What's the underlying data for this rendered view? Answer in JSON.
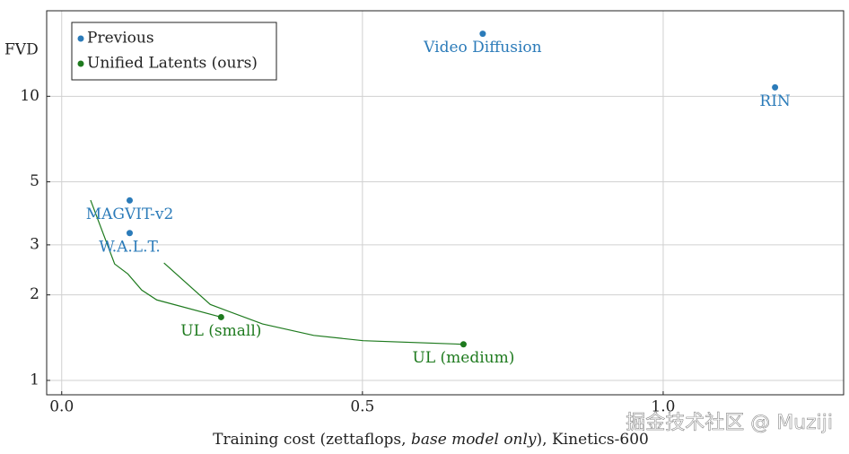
{
  "chart_data": {
    "type": "scatter",
    "ylabel": "FVD",
    "xlabel": [
      "Training cost (zettaflops, ",
      "base model only",
      "), Kinetics-600"
    ],
    "xlim": [
      -0.025,
      1.3
    ],
    "ylim": [
      0.89,
      20
    ],
    "log_y": true,
    "grid": true,
    "legend": "top-left",
    "xticks": [
      {
        "value": 0,
        "label": "0.0"
      },
      0.5,
      {
        "value": 1,
        "label": "1.0"
      }
    ],
    "yticks": [
      1,
      2,
      3,
      5,
      10
    ],
    "series": [
      {
        "name": "Previous",
        "color": "#2b7bb9",
        "x": [
          0.7,
          1.186,
          0.113,
          0.113
        ],
        "values": [
          16.6,
          10.75,
          4.3,
          3.3
        ],
        "point_labels": [
          "Video Diffusion",
          "RIN",
          "MAGVIT-v2",
          "W.A.L.T."
        ]
      },
      {
        "name": "Unified Latents (ours)",
        "color": "#1e7a1e",
        "x": [
          0.265,
          0.668
        ],
        "values": [
          1.67,
          1.34
        ],
        "point_labels": [
          "UL (small)",
          "UL (medium)"
        ]
      }
    ],
    "curves": [
      {
        "color": "#1e7a1e",
        "x": [
          0.048,
          0.088,
          0.11,
          0.133,
          0.158,
          0.265
        ],
        "values": [
          4.31,
          2.57,
          2.37,
          2.08,
          1.92,
          1.67
        ]
      },
      {
        "color": "#1e7a1e",
        "x": [
          0.17,
          0.247,
          0.334,
          0.419,
          0.501,
          0.668
        ],
        "values": [
          2.59,
          1.85,
          1.58,
          1.44,
          1.38,
          1.34
        ]
      }
    ],
    "watermark": "掘金技术社区 @ Muziji"
  }
}
